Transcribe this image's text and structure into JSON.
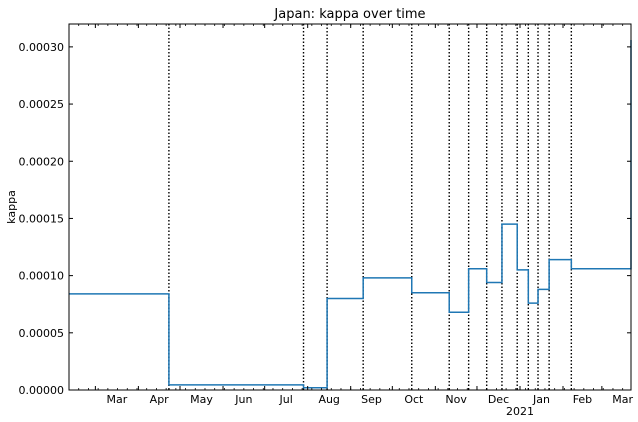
{
  "chart_data": {
    "type": "line",
    "title": "Japan: kappa over time",
    "xlabel": "",
    "ylabel": "kappa",
    "x_axis": {
      "type": "date",
      "range": [
        "2020-02-11",
        "2021-03-22"
      ],
      "major_ticks": [
        {
          "date": "2020-03-01",
          "label": "Mar"
        },
        {
          "date": "2020-04-01",
          "label": "Apr"
        },
        {
          "date": "2020-05-01",
          "label": "May"
        },
        {
          "date": "2020-06-01",
          "label": "Jun"
        },
        {
          "date": "2020-07-01",
          "label": "Jul"
        },
        {
          "date": "2020-08-01",
          "label": "Aug"
        },
        {
          "date": "2020-09-01",
          "label": "Sep"
        },
        {
          "date": "2020-10-01",
          "label": "Oct"
        },
        {
          "date": "2020-11-01",
          "label": "Nov"
        },
        {
          "date": "2020-12-01",
          "label": "Dec"
        },
        {
          "date": "2021-01-01",
          "label": "Jan",
          "sublabel": "2021"
        },
        {
          "date": "2021-02-01",
          "label": "Feb"
        },
        {
          "date": "2021-03-01",
          "label": "Mar"
        }
      ]
    },
    "y_axis": {
      "range": [
        0,
        0.00032
      ],
      "ticks": [
        0,
        5e-05,
        0.0001,
        0.00015,
        0.0002,
        0.00025,
        0.0003
      ],
      "tick_labels": [
        "0.00000",
        "0.00005",
        "0.00010",
        "0.00015",
        "0.00020",
        "0.00025",
        "0.00030"
      ]
    },
    "grid": false,
    "line_color": "#1f77b4",
    "changepoint_line_color": "#000000",
    "changepoints": [
      "2020-04-23",
      "2020-07-29",
      "2020-08-15",
      "2020-09-10",
      "2020-10-15",
      "2020-11-11",
      "2020-11-25",
      "2020-12-08",
      "2020-12-19",
      "2020-12-30",
      "2021-01-07",
      "2021-01-14",
      "2021-01-22",
      "2021-02-07"
    ],
    "series": [
      {
        "x": [
          "2020-02-11",
          "2020-04-23",
          "2020-07-29",
          "2020-08-15",
          "2020-09-10",
          "2020-10-15",
          "2020-11-11",
          "2020-11-25",
          "2020-12-08",
          "2020-12-19",
          "2020-12-30",
          "2021-01-07",
          "2021-01-14",
          "2021-01-22",
          "2021-02-07",
          "2021-03-22"
        ],
        "y": [
          8.4e-05,
          4.5e-06,
          2e-06,
          8e-05,
          9.8e-05,
          8.5e-05,
          6.8e-05,
          0.000106,
          9.4e-05,
          0.000145,
          0.000105,
          7.6e-05,
          8.8e-05,
          0.000114,
          0.000106,
          0.000306
        ]
      }
    ]
  }
}
